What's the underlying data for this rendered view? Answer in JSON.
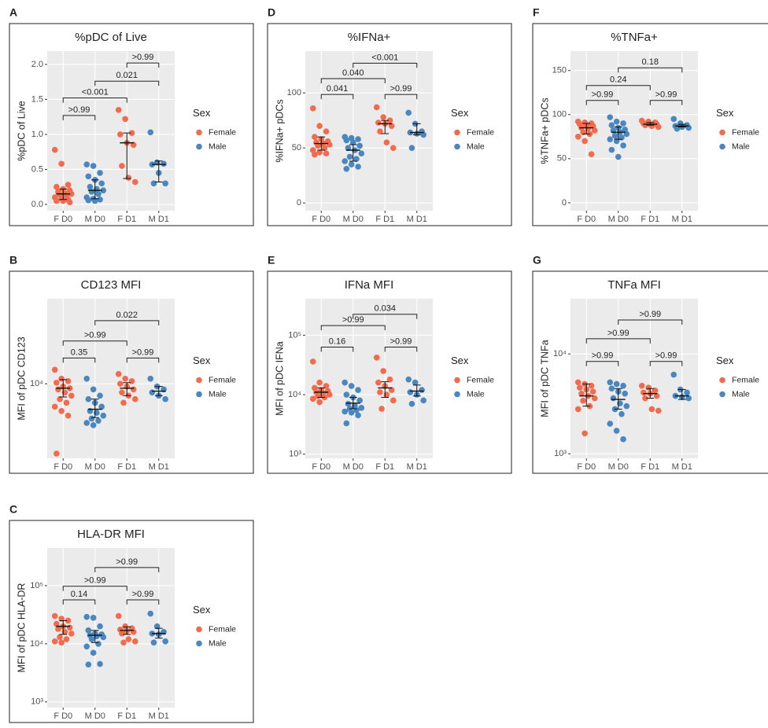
{
  "chart_data": [
    {
      "type": "strip",
      "panel": "A",
      "title": "%pDC of Live",
      "y_label": "%pDC of Live",
      "legend_title": "Sex",
      "categories": [
        "F D0",
        "M D0",
        "F D1",
        "M D1"
      ],
      "log_scale": false,
      "grid": true,
      "ylim": [
        -0.09,
        2.19
      ],
      "yticks": [
        {
          "value": 0,
          "label": "0.0"
        },
        {
          "value": 0.5,
          "label": "0.5"
        },
        {
          "value": 1,
          "label": "1.0"
        },
        {
          "value": 1.5,
          "label": "1.5"
        },
        {
          "value": 2,
          "label": "2.0"
        }
      ],
      "series": [
        {
          "name": "Female",
          "color": "#f26b4f",
          "values": [
            [
              0.78,
              0.58,
              0.28,
              0.25,
              0.22,
              0.2,
              0.18,
              0.16,
              0.15,
              0.14,
              0.12,
              0.1,
              0.08,
              0.07,
              0.05,
              0.05,
              0.03
            ],
            null,
            [
              1.35,
              1.22,
              1.02,
              1.0,
              0.88,
              0.85,
              0.55,
              0.38,
              0.32
            ],
            null
          ]
        },
        {
          "name": "Male",
          "color": "#4a86bf",
          "values": [
            null,
            [
              0.57,
              0.55,
              0.45,
              0.4,
              0.35,
              0.3,
              0.25,
              0.22,
              0.2,
              0.18,
              0.15,
              0.1,
              0.08,
              0.07,
              0.06,
              0.05
            ],
            null,
            [
              1.03,
              0.6,
              0.58,
              0.57,
              0.45,
              0.3,
              0.3
            ]
          ]
        }
      ],
      "median": [
        0.15,
        0.2,
        0.88,
        0.57
      ],
      "q1": [
        0.07,
        0.08,
        0.37,
        0.32
      ],
      "q3": [
        0.22,
        0.35,
        1.02,
        0.62
      ],
      "comparisons": [
        {
          "pair": [
            0,
            1
          ],
          "label": ">0.99",
          "y": 1.27
        },
        {
          "pair": [
            0,
            2
          ],
          "label": "<0.001",
          "y": 1.52
        },
        {
          "pair": [
            1,
            3
          ],
          "label": "0.021",
          "y": 1.76
        },
        {
          "pair": [
            2,
            3
          ],
          "label": ">0.99",
          "y": 2.02
        }
      ]
    },
    {
      "type": "strip",
      "panel": "B",
      "title": "CD123 MFI",
      "y_label": "MFI of pDC CD123",
      "legend_title": "Sex",
      "categories": [
        "F D0",
        "M D0",
        "F D1",
        "M D1"
      ],
      "log_scale": true,
      "grid": true,
      "ylim": [
        2470,
        49200
      ],
      "yticks": [
        {
          "value": 10000,
          "label": "10⁴"
        }
      ],
      "series": [
        {
          "name": "Female",
          "color": "#f26b4f",
          "values": [
            [
              13000,
              11000,
              10500,
              10200,
              9500,
              9200,
              9000,
              8500,
              8000,
              7500,
              7000,
              6500,
              6000,
              5500,
              2700
            ],
            null,
            [
              12000,
              11000,
              10500,
              10000,
              9500,
              9000,
              8500,
              8000,
              7500,
              7000
            ],
            null
          ]
        },
        {
          "name": "Male",
          "color": "#4a86bf",
          "values": [
            null,
            [
              11000,
              9000,
              8000,
              7500,
              7000,
              6500,
              6000,
              5800,
              5500,
              5200,
              5000,
              4800,
              4600
            ],
            null,
            [
              11000,
              9500,
              9000,
              8500,
              8000,
              7500
            ]
          ]
        }
      ],
      "median": [
        9200,
        6200,
        9200,
        8700
      ],
      "q1": [
        7800,
        5300,
        8000,
        8000
      ],
      "q3": [
        10800,
        7500,
        10200,
        9500
      ],
      "comparisons": [
        {
          "pair": [
            0,
            1
          ],
          "label": "0.35",
          "y": 16200
        },
        {
          "pair": [
            0,
            2
          ],
          "label": ">0.99",
          "y": 22300
        },
        {
          "pair": [
            1,
            3
          ],
          "label": "0.022",
          "y": 32600
        },
        {
          "pair": [
            2,
            3
          ],
          "label": ">0.99",
          "y": 16200
        }
      ]
    },
    {
      "type": "strip",
      "panel": "C",
      "title": "HLA-DR MFI",
      "y_label": "MFI of pDC HLA-DR",
      "legend_title": "Sex",
      "categories": [
        "F D0",
        "M D0",
        "F D1",
        "M D1"
      ],
      "log_scale": true,
      "grid": true,
      "ylim": [
        800,
        445000
      ],
      "yticks": [
        {
          "value": 1000,
          "label": "10³"
        },
        {
          "value": 10000,
          "label": "10⁴"
        },
        {
          "value": 100000,
          "label": "10⁵"
        }
      ],
      "series": [
        {
          "name": "Female",
          "color": "#f26b4f",
          "values": [
            [
              30000,
              27000,
              25000,
              22000,
              20000,
              19000,
              18000,
              16000,
              15000,
              13000,
              12000,
              11000,
              10500
            ],
            null,
            [
              30000,
              20000,
              18500,
              17500,
              16500,
              16000,
              15000,
              12000,
              11000,
              10500
            ],
            null
          ]
        },
        {
          "name": "Male",
          "color": "#4a86bf",
          "values": [
            null,
            [
              29000,
              28000,
              20000,
              17000,
              15000,
              14500,
              14000,
              13500,
              13000,
              12000,
              10000,
              9000,
              7000,
              4500,
              4400
            ],
            null,
            [
              33000,
              20000,
              16000,
              15000,
              14500,
              11000,
              10500
            ]
          ]
        }
      ],
      "median": [
        20000,
        14000,
        17000,
        15000
      ],
      "q1": [
        14500,
        10500,
        14500,
        12500
      ],
      "q3": [
        25000,
        17000,
        19500,
        18500
      ],
      "comparisons": [
        {
          "pair": [
            0,
            1
          ],
          "label": "0.14",
          "y": 57000
        },
        {
          "pair": [
            0,
            2
          ],
          "label": ">0.99",
          "y": 98000
        },
        {
          "pair": [
            1,
            3
          ],
          "label": ">0.99",
          "y": 205000
        },
        {
          "pair": [
            2,
            3
          ],
          "label": ">0.99",
          "y": 57000
        }
      ]
    },
    {
      "type": "strip",
      "panel": "D",
      "title": "%IFNa+",
      "y_label": "%IFNa+ pDCs",
      "legend_title": "Sex",
      "categories": [
        "F D0",
        "M D0",
        "F D1",
        "M D1"
      ],
      "log_scale": false,
      "grid": true,
      "ylim": [
        -7,
        138
      ],
      "yticks": [
        0,
        50,
        100
      ],
      "series": [
        {
          "name": "Female",
          "color": "#f26b4f",
          "values": [
            [
              86,
              70,
              65,
              60,
              58,
              56,
              55,
              54,
              53,
              52,
              50,
              48,
              46,
              45,
              44
            ],
            null,
            [
              87,
              78,
              75,
              73,
              72,
              70,
              65,
              55,
              50
            ],
            null
          ]
        },
        {
          "name": "Male",
          "color": "#4a86bf",
          "values": [
            null,
            [
              60,
              59,
              58,
              57,
              55,
              52,
              50,
              48,
              45,
              42,
              40,
              38,
              35,
              33,
              31
            ],
            null,
            [
              82,
              72,
              65,
              64,
              63,
              62,
              50
            ]
          ]
        }
      ],
      "median": [
        54,
        48,
        72,
        64
      ],
      "q1": [
        48,
        38,
        63,
        62
      ],
      "q3": [
        60,
        53,
        75,
        72
      ],
      "comparisons": [
        {
          "pair": [
            0,
            1
          ],
          "label": "0.041",
          "y": 98.6
        },
        {
          "pair": [
            0,
            2
          ],
          "label": "0.040",
          "y": 113
        },
        {
          "pair": [
            1,
            3
          ],
          "label": "<0.001",
          "y": 127
        },
        {
          "pair": [
            2,
            3
          ],
          "label": ">0.99",
          "y": 98.6
        }
      ]
    },
    {
      "type": "strip",
      "panel": "E",
      "title": "IFNa MFI",
      "y_label": "MFI of pDC IFNa",
      "legend_title": "Sex",
      "categories": [
        "F D0",
        "M D0",
        "F D1",
        "M D1"
      ],
      "log_scale": true,
      "grid": true,
      "ylim": [
        850,
        410000
      ],
      "yticks": [
        {
          "value": 1000,
          "label": "10³"
        },
        {
          "value": 10000,
          "label": "10⁴"
        },
        {
          "value": 100000,
          "label": "10⁵"
        }
      ],
      "series": [
        {
          "name": "Female",
          "color": "#f26b4f",
          "values": [
            [
              36000,
              16000,
              14000,
              13000,
              12000,
              11500,
              11000,
              10500,
              10000,
              9500,
              9000,
              8500,
              7500
            ],
            null,
            [
              42000,
              25000,
              18000,
              16000,
              14000,
              12000,
              11000,
              10000,
              8000,
              5800
            ],
            null
          ]
        },
        {
          "name": "Male",
          "color": "#4a86bf",
          "values": [
            null,
            [
              16000,
              14000,
              12000,
              10000,
              9000,
              8000,
              7000,
              6500,
              6000,
              5800,
              5500,
              5200,
              5000,
              4500,
              3300
            ],
            null,
            [
              18000,
              16000,
              12000,
              11000,
              10000,
              8000,
              7000
            ]
          ]
        }
      ],
      "median": [
        11000,
        7200,
        13000,
        11500
      ],
      "q1": [
        9000,
        5800,
        9000,
        9500
      ],
      "q3": [
        13000,
        9000,
        16500,
        14500
      ],
      "comparisons": [
        {
          "pair": [
            0,
            1
          ],
          "label": "0.16",
          "y": 63000
        },
        {
          "pair": [
            0,
            2
          ],
          "label": ">0.99",
          "y": 145000
        },
        {
          "pair": [
            1,
            3
          ],
          "label": "0.034",
          "y": 225000
        },
        {
          "pair": [
            2,
            3
          ],
          "label": ">0.99",
          "y": 63000
        }
      ]
    },
    {
      "type": "strip",
      "panel": "F",
      "title": "%TNFa+",
      "y_label": "%TNFa+ pDCs",
      "legend_title": "Sex",
      "categories": [
        "F D0",
        "M D0",
        "F D1",
        "M D1"
      ],
      "log_scale": false,
      "grid": true,
      "ylim": [
        -9,
        172
      ],
      "yticks": [
        0,
        50,
        100,
        150
      ],
      "series": [
        {
          "name": "Female",
          "color": "#f26b4f",
          "values": [
            [
              92,
              91,
              90,
              89,
              88,
              87,
              85,
              84,
              82,
              80,
              78,
              75,
              70,
              55
            ],
            null,
            [
              93,
              92,
              91,
              90,
              89,
              89,
              88,
              87,
              86
            ],
            null
          ]
        },
        {
          "name": "Male",
          "color": "#4a86bf",
          "values": [
            null,
            [
              97,
              92,
              90,
              88,
              85,
              83,
              82,
              80,
              78,
              76,
              74,
              72,
              70,
              65,
              60,
              52
            ],
            null,
            [
              95,
              90,
              88,
              87,
              86,
              85,
              84
            ]
          ]
        }
      ],
      "median": [
        85,
        80,
        89,
        87
      ],
      "q1": [
        78,
        72,
        88,
        86
      ],
      "q3": [
        90,
        86,
        91,
        89
      ],
      "comparisons": [
        {
          "pair": [
            0,
            1
          ],
          "label": ">0.99",
          "y": 116
        },
        {
          "pair": [
            0,
            2
          ],
          "label": "0.24",
          "y": 133
        },
        {
          "pair": [
            1,
            3
          ],
          "label": "0.18",
          "y": 153
        },
        {
          "pair": [
            2,
            3
          ],
          "label": ">0.99",
          "y": 116
        }
      ]
    },
    {
      "type": "strip",
      "panel": "G",
      "title": "TNFa MFI",
      "y_label": "MFI of pDC TNFa",
      "legend_title": "Sex",
      "categories": [
        "F D0",
        "M D0",
        "F D1",
        "M D1"
      ],
      "log_scale": true,
      "grid": true,
      "ylim": [
        900,
        35700
      ],
      "yticks": [
        {
          "value": 1000,
          "label": "10³"
        },
        {
          "value": 10000,
          "label": "10⁴"
        }
      ],
      "series": [
        {
          "name": "Female",
          "color": "#f26b4f",
          "values": [
            [
              5200,
              5000,
              4800,
              4600,
              4400,
              4200,
              4000,
              3800,
              3600,
              3400,
              3000,
              2800,
              1600
            ],
            null,
            [
              4800,
              4600,
              4300,
              4100,
              4000,
              3800,
              3600,
              2800,
              2700
            ],
            null
          ]
        },
        {
          "name": "Male",
          "color": "#4a86bf",
          "values": [
            null,
            [
              5200,
              5000,
              4800,
              4500,
              4200,
              4000,
              3600,
              3200,
              3000,
              2800,
              2500,
              2000,
              1700,
              1400
            ],
            null,
            [
              6200,
              4400,
              4100,
              3800,
              3700,
              3600
            ]
          ]
        }
      ],
      "median": [
        3800,
        3500,
        4000,
        3800
      ],
      "q1": [
        3000,
        2800,
        3600,
        3500
      ],
      "q3": [
        5000,
        4500,
        4500,
        4400
      ],
      "comparisons": [
        {
          "pair": [
            0,
            1
          ],
          "label": ">0.99",
          "y": 8400
        },
        {
          "pair": [
            0,
            2
          ],
          "label": ">0.99",
          "y": 14200
        },
        {
          "pair": [
            1,
            3
          ],
          "label": ">0.99",
          "y": 21900
        },
        {
          "pair": [
            2,
            3
          ],
          "label": ">0.99",
          "y": 8400
        }
      ]
    }
  ]
}
